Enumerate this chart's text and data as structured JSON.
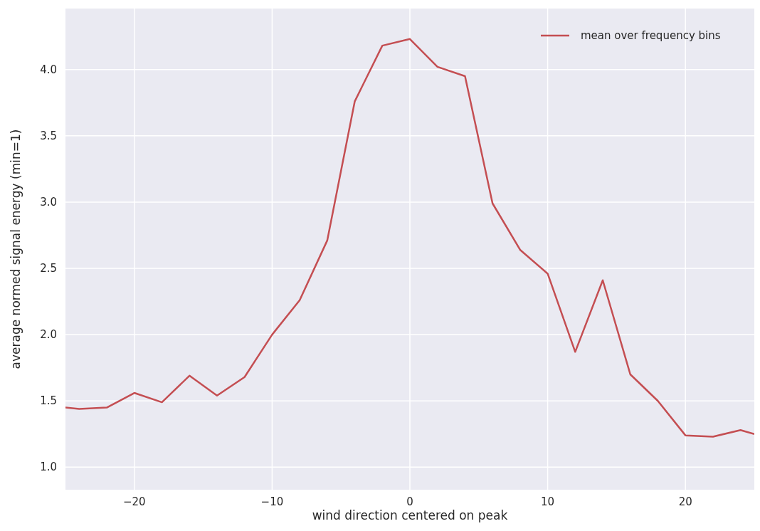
{
  "chart_data": {
    "type": "line",
    "xlabel": "wind direction centered on peak",
    "ylabel": "average normed signal energy (min=1)",
    "x": [
      -25,
      -24,
      -22,
      -20,
      -18,
      -16,
      -14,
      -12,
      -10,
      -8,
      -6,
      -4,
      -2,
      0,
      2,
      4,
      6,
      8,
      10,
      12,
      14,
      16,
      18,
      20,
      22,
      24,
      25
    ],
    "series": [
      {
        "name": "mean over frequency bins",
        "color": "#c44e52",
        "values": [
          1.45,
          1.44,
          1.45,
          1.56,
          1.49,
          1.69,
          1.54,
          1.68,
          2.0,
          2.26,
          2.71,
          3.76,
          4.18,
          4.23,
          4.02,
          3.95,
          2.99,
          2.64,
          2.46,
          1.87,
          2.41,
          1.7,
          1.5,
          1.24,
          1.23,
          1.28,
          1.25
        ]
      }
    ],
    "xlim": [
      -25,
      25
    ],
    "xticks": [
      {
        "value": -20,
        "label": "−20"
      },
      {
        "value": -10,
        "label": "−10"
      },
      0,
      10,
      20
    ],
    "ylim": [
      0.83,
      4.46
    ],
    "yticks": [
      {
        "value": 1,
        "label": "1.0"
      },
      1.5,
      {
        "value": 2,
        "label": "2.0"
      },
      2.5,
      {
        "value": 3,
        "label": "3.0"
      },
      3.5,
      {
        "value": 4,
        "label": "4.0"
      }
    ],
    "grid": true,
    "legend": "top right",
    "marker": "none",
    "line_style": "solid"
  }
}
